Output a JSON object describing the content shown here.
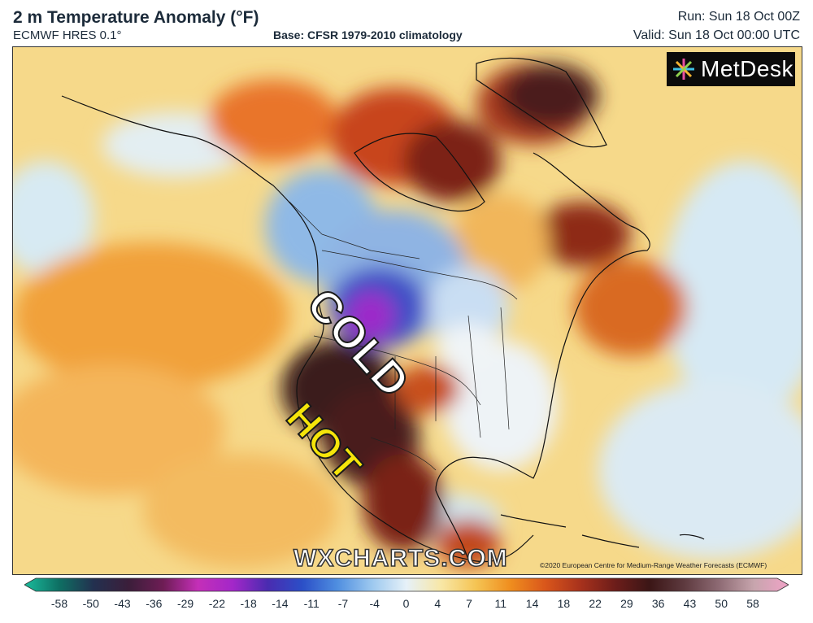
{
  "header": {
    "title": "2 m Temperature Anomaly (°F)",
    "model": "ECMWF HRES 0.1°",
    "base": "Base: CFSR 1979-2010 climatology",
    "run": "Run: Sun 18 Oct 00Z",
    "valid": "Valid: Sun 18 Oct 00:00 UTC"
  },
  "logo": {
    "text": "MetDesk",
    "icon": "metdesk-star-icon"
  },
  "annotations": {
    "cold": "COLD",
    "hot": "HOT"
  },
  "watermark": "WXCHARTS.COM",
  "copyright": "©2020 European Centre for Medium-Range Weather Forecasts (ECMWF)",
  "colorbar": {
    "ticks": [
      "-58",
      "-50",
      "-43",
      "-36",
      "-29",
      "-22",
      "-18",
      "-14",
      "-11",
      "-7",
      "-4",
      "0",
      "4",
      "7",
      "11",
      "14",
      "18",
      "22",
      "29",
      "36",
      "43",
      "50",
      "58"
    ],
    "colors": [
      "#1abc9c",
      "#0e6f63",
      "#23304f",
      "#3b1e3a",
      "#6e1d55",
      "#c42fb8",
      "#a327c9",
      "#4a2bb0",
      "#2b4fc7",
      "#4f8ee0",
      "#9cc8ef",
      "#e6f1f8",
      "#f8e7a6",
      "#f5c453",
      "#ef8d1e",
      "#d9561b",
      "#a8321c",
      "#6d1d1a",
      "#3b1616",
      "#5e3a3f",
      "#8e6b74",
      "#c7a5ad",
      "#f0a3c7"
    ]
  }
}
